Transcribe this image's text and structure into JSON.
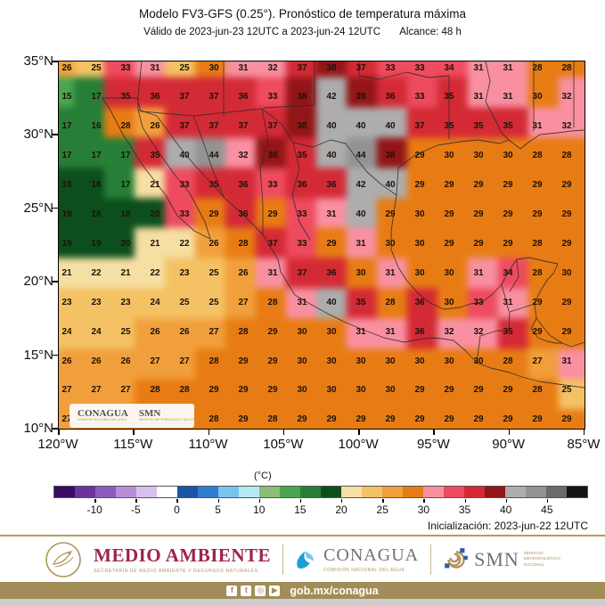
{
  "chart_data": {
    "type": "heatmap",
    "title": "Modelo FV3-GFS (0.25°). Pronóstico de temperatura máxima",
    "valid_label": "Válido de 2023-jun-23 12UTC a 2023-jun-24 12UTC",
    "alcance_label": "Alcance: 48 h",
    "initialization": "Inicialización: 2023-jun-22 12UTC",
    "x_axis": {
      "labels": [
        "120°W",
        "115°W",
        "110°W",
        "105°W",
        "100°W",
        "95°W",
        "90°W",
        "85°W"
      ]
    },
    "y_axis": {
      "labels": [
        "35°N",
        "30°N",
        "25°N",
        "20°N",
        "15°N",
        "10°N"
      ]
    },
    "grid": {
      "cols": 18,
      "rows": 13,
      "approx_lon_cols_deg_w": [
        119.5,
        117.5,
        115.6,
        113.6,
        111.6,
        109.7,
        107.7,
        105.7,
        103.8,
        101.8,
        99.8,
        97.9,
        95.9,
        93.9,
        92.0,
        90.0,
        88.0,
        86.1
      ],
      "approx_lat_rows_deg_n": [
        34.6,
        32.6,
        30.6,
        28.6,
        26.6,
        24.6,
        22.6,
        20.6,
        18.6,
        16.6,
        14.6,
        12.6,
        10.6
      ],
      "values": [
        [
          26,
          25,
          33,
          31,
          25,
          30,
          31,
          32,
          37,
          38,
          37,
          33,
          33,
          34,
          31,
          31,
          28,
          28
        ],
        [
          15,
          17,
          35,
          36,
          37,
          37,
          36,
          33,
          38,
          42,
          39,
          36,
          33,
          35,
          31,
          31,
          30,
          32
        ],
        [
          17,
          16,
          28,
          26,
          37,
          37,
          37,
          37,
          38,
          40,
          40,
          40,
          37,
          35,
          35,
          35,
          31,
          32
        ],
        [
          17,
          17,
          17,
          35,
          40,
          44,
          32,
          38,
          35,
          40,
          44,
          38,
          29,
          30,
          30,
          30,
          28,
          28
        ],
        [
          18,
          18,
          17,
          21,
          33,
          35,
          36,
          33,
          36,
          36,
          42,
          40,
          29,
          29,
          29,
          29,
          29,
          29
        ],
        [
          19,
          18,
          18,
          20,
          33,
          29,
          36,
          29,
          33,
          31,
          40,
          29,
          30,
          29,
          29,
          29,
          29,
          29
        ],
        [
          19,
          19,
          20,
          21,
          22,
          26,
          28,
          37,
          33,
          29,
          31,
          30,
          30,
          29,
          29,
          29,
          28,
          29
        ],
        [
          21,
          22,
          21,
          22,
          23,
          25,
          26,
          31,
          37,
          36,
          30,
          31,
          30,
          30,
          31,
          34,
          28,
          30
        ],
        [
          23,
          23,
          23,
          24,
          25,
          25,
          27,
          28,
          31,
          40,
          35,
          28,
          36,
          30,
          33,
          31,
          29,
          29
        ],
        [
          24,
          24,
          25,
          26,
          26,
          27,
          28,
          29,
          30,
          30,
          31,
          31,
          36,
          32,
          32,
          35,
          29,
          29
        ],
        [
          26,
          26,
          26,
          27,
          27,
          28,
          29,
          29,
          30,
          30,
          30,
          30,
          30,
          30,
          30,
          28,
          27,
          31
        ],
        [
          27,
          27,
          27,
          28,
          28,
          29,
          29,
          29,
          30,
          30,
          30,
          30,
          29,
          29,
          29,
          29,
          28,
          25
        ],
        [
          27,
          null,
          null,
          null,
          null,
          28,
          29,
          28,
          29,
          29,
          29,
          29,
          29,
          29,
          29,
          29,
          29,
          29
        ]
      ]
    },
    "colorbar": {
      "title": "(°C)",
      "ticks": [
        -10,
        -5,
        0,
        5,
        10,
        15,
        20,
        25,
        30,
        35,
        40,
        45
      ],
      "range": [
        -15,
        50
      ],
      "segments": [
        {
          "from": -15,
          "to": -12.5,
          "color": "#3b0a64"
        },
        {
          "from": -12.5,
          "to": -10,
          "color": "#6a33a0"
        },
        {
          "from": -10,
          "to": -7.5,
          "color": "#8e5cc0"
        },
        {
          "from": -7.5,
          "to": -5,
          "color": "#b78fd9"
        },
        {
          "from": -5,
          "to": -2.5,
          "color": "#d9c0ec"
        },
        {
          "from": -2.5,
          "to": 0,
          "color": "#ffffff"
        },
        {
          "from": 0,
          "to": 2.5,
          "color": "#1a54a8"
        },
        {
          "from": 2.5,
          "to": 5,
          "color": "#2f7fd1"
        },
        {
          "from": 5,
          "to": 7.5,
          "color": "#79c3ef"
        },
        {
          "from": 7.5,
          "to": 10,
          "color": "#b5eaf5"
        },
        {
          "from": 10,
          "to": 12.5,
          "color": "#8cbd72"
        },
        {
          "from": 12.5,
          "to": 15,
          "color": "#4aa64f"
        },
        {
          "from": 15,
          "to": 17.5,
          "color": "#277f37"
        },
        {
          "from": 17.5,
          "to": 20,
          "color": "#0c4f1d"
        },
        {
          "from": 20,
          "to": 22.5,
          "color": "#f6dfa2"
        },
        {
          "from": 22.5,
          "to": 25,
          "color": "#f4c264"
        },
        {
          "from": 25,
          "to": 27.5,
          "color": "#f19f3c"
        },
        {
          "from": 27.5,
          "to": 30,
          "color": "#e87c14"
        },
        {
          "from": 30,
          "to": 32.5,
          "color": "#f890a2"
        },
        {
          "from": 32.5,
          "to": 35,
          "color": "#ee4b5e"
        },
        {
          "from": 35,
          "to": 37.5,
          "color": "#d42a35"
        },
        {
          "from": 37.5,
          "to": 40,
          "color": "#921518"
        },
        {
          "from": 40,
          "to": 42.5,
          "color": "#adadad"
        },
        {
          "from": 42.5,
          "to": 45,
          "color": "#939393"
        },
        {
          "from": 45,
          "to": 47.5,
          "color": "#6a6a6a"
        },
        {
          "from": 47.5,
          "to": 50,
          "color": "#131313"
        }
      ]
    }
  },
  "watermark": {
    "conagua": "CONAGUA",
    "conagua_sub": "COMISIÓN NACIONAL DEL AGUA",
    "smn": "SMN",
    "smn_sub": "SERVICIO METEOROLÓGICO NACIONAL"
  },
  "footer": {
    "medio_ambiente": "MEDIO AMBIENTE",
    "medio_ambiente_sub": "SECRETARÍA DE MEDIO AMBIENTE Y RECURSOS NATURALES",
    "conagua": "CONAGUA",
    "conagua_sub": "COMISIÓN NACIONAL DEL AGUA",
    "smn": "SMN",
    "smn_sub_line1": "SERVICIO",
    "smn_sub_line2": "METEOROLÓGICO",
    "smn_sub_line3": "NACIONAL",
    "social_icons": [
      {
        "name": "facebook-icon",
        "glyph": "f"
      },
      {
        "name": "twitter-icon",
        "glyph": "t"
      },
      {
        "name": "instagram-icon",
        "glyph": "◎"
      },
      {
        "name": "youtube-icon",
        "glyph": "▶"
      }
    ],
    "link": "gob.mx/conagua",
    "gold_color": "#a28d58",
    "brand_red": "#9d2449"
  }
}
